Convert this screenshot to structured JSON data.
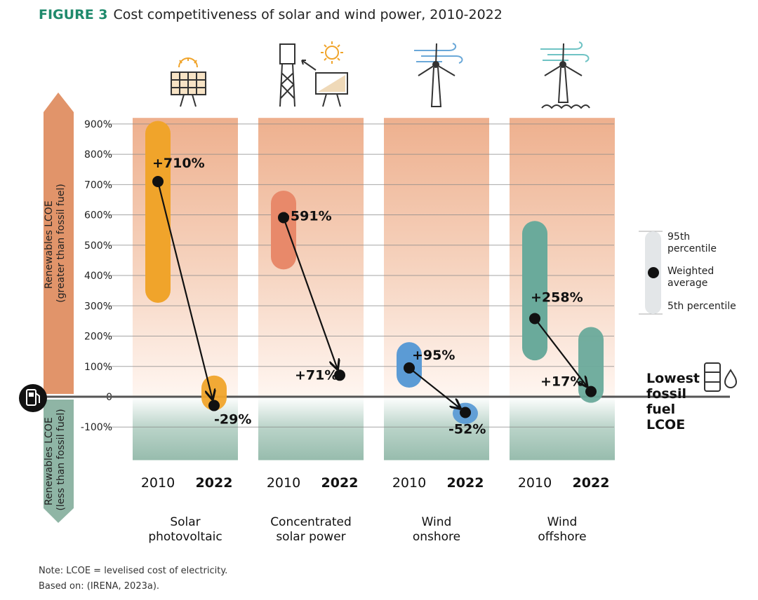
{
  "figure": {
    "label": "FIGURE 3",
    "title": "Cost competitiveness of solar and wind power, 2010-2022"
  },
  "chart_data": {
    "type": "range-dot",
    "yaxis": {
      "ticks": [
        900,
        800,
        700,
        600,
        500,
        400,
        300,
        200,
        100,
        0,
        -100
      ],
      "tick_labels": [
        "900%",
        "800%",
        "700%",
        "600%",
        "500%",
        "400%",
        "300%",
        "200%",
        "100%",
        "0",
        "-100%"
      ],
      "range": [
        -200,
        920
      ]
    },
    "axis_labels": {
      "upper": [
        "Renewables LCOE",
        "(greater than fossil fuel)"
      ],
      "lower": [
        "Renewables LCOE",
        "(less than fossil fuel)"
      ]
    },
    "groups": [
      {
        "name": [
          "Solar",
          "photovoltaic"
        ],
        "color": "#f0a42b",
        "points": [
          {
            "year": "2010",
            "p5": 310,
            "p95": 910,
            "avg": 710,
            "label": "+710%"
          },
          {
            "year": "2022",
            "p5": -45,
            "p95": 70,
            "avg": -29,
            "label": "-29%"
          }
        ]
      },
      {
        "name": [
          "Concentrated",
          "solar power"
        ],
        "color": "#e8896a",
        "points": [
          {
            "year": "2010",
            "p5": 420,
            "p95": 680,
            "avg": 591,
            "label": "+591%"
          },
          {
            "year": "2022",
            "p5": 71,
            "p95": 71,
            "avg": 71,
            "label": "+71%"
          }
        ]
      },
      {
        "name": [
          "Wind",
          "onshore"
        ],
        "color": "#5b9bd5",
        "points": [
          {
            "year": "2010",
            "p5": 30,
            "p95": 180,
            "avg": 95,
            "label": "+95%"
          },
          {
            "year": "2022",
            "p5": -90,
            "p95": -20,
            "avg": -52,
            "label": "-52%"
          }
        ]
      },
      {
        "name": [
          "Wind",
          "offshore"
        ],
        "color": "#6aaa9b",
        "points": [
          {
            "year": "2010",
            "p5": 120,
            "p95": 580,
            "avg": 258,
            "label": "+258%"
          },
          {
            "year": "2022",
            "p5": -20,
            "p95": 230,
            "avg": 17,
            "label": "+17%"
          }
        ]
      }
    ],
    "legend": {
      "top": [
        "95th",
        "percentile"
      ],
      "mid": [
        "Weighted",
        "average"
      ],
      "bottom": "5th percentile"
    },
    "baseline_label": [
      "Lowest",
      "fossil",
      "fuel",
      "LCOE"
    ]
  },
  "notes": {
    "line1": "Note: LCOE = levelised cost of electricity.",
    "line2": "Based on: (IRENA, 2023a)."
  }
}
